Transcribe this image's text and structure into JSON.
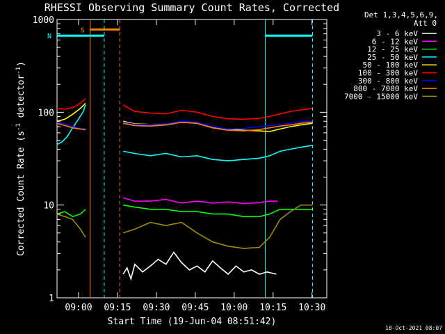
{
  "chart_data": {
    "type": "line",
    "title": "RHESSI Observing Summary Count Rates, Corrected",
    "xlabel": "Start Time (19-Jun-04 08:51:42)",
    "ylabel_main": "Corrected Count Rate (s",
    "ylabel_sup1": "-1",
    "ylabel_mid": " detector",
    "ylabel_sup2": "-1",
    "ylabel_end": ")",
    "x_unit": "minutes after 08:51:42",
    "xlim": [
      0,
      104
    ],
    "ylim": [
      1,
      1000
    ],
    "yscale": "log",
    "x_ticks": [
      {
        "value": 8.3,
        "label": "09:00"
      },
      {
        "value": 23.3,
        "label": "09:15"
      },
      {
        "value": 38.3,
        "label": "09:30"
      },
      {
        "value": 53.3,
        "label": "09:45"
      },
      {
        "value": 68.3,
        "label": "10:00"
      },
      {
        "value": 83.3,
        "label": "10:15"
      },
      {
        "value": 98.3,
        "label": "10:30"
      }
    ],
    "y_ticks": [
      {
        "value": 1,
        "label": "1"
      },
      {
        "value": 10,
        "label": "10"
      },
      {
        "value": 100,
        "label": "100"
      },
      {
        "value": 1000,
        "label": "1000"
      }
    ],
    "legend_header_1": "Det 1,3,4,5,6,9,",
    "legend_header_2": "Att 0",
    "legend_position": "right",
    "flags": [
      {
        "label": "S",
        "color": "#ff7f00",
        "x_start": 12.8,
        "x_end": 24.2,
        "level": 780
      },
      {
        "label": "N",
        "color": "#00ffff",
        "x_start": 0,
        "x_end": 18.2,
        "level": 670
      },
      {
        "label": "",
        "color": "#00ffff",
        "x_start": 80.3,
        "x_end": 98.5,
        "level": 670
      }
    ],
    "markers": [
      {
        "x": 12.8,
        "color": "#ff7f00",
        "style": "solid"
      },
      {
        "x": 24.2,
        "color": "#ff7f00",
        "style": "dashed"
      },
      {
        "x": 18.2,
        "color": "#00ffff",
        "style": "dashed"
      },
      {
        "x": 80.3,
        "color": "#00ffff",
        "style": "solid"
      },
      {
        "x": 98.5,
        "color": "#00ffff",
        "style": "dashed"
      }
    ],
    "series": [
      {
        "name": "3 - 6 keV",
        "color": "#ffffff",
        "points": [
          [
            25.5,
            1.8
          ],
          [
            27.0,
            2.1
          ],
          [
            28.5,
            1.6
          ],
          [
            30.0,
            2.3
          ],
          [
            33.0,
            1.9
          ],
          [
            36.0,
            2.2
          ],
          [
            39.0,
            2.6
          ],
          [
            42.0,
            2.3
          ],
          [
            45.0,
            3.1
          ],
          [
            48.0,
            2.4
          ],
          [
            51.0,
            2.0
          ],
          [
            54.0,
            2.2
          ],
          [
            57.0,
            1.9
          ],
          [
            60.0,
            2.5
          ],
          [
            63.0,
            2.1
          ],
          [
            66.0,
            1.8
          ],
          [
            69.0,
            2.2
          ],
          [
            72.0,
            1.9
          ],
          [
            75.0,
            2.0
          ],
          [
            78.0,
            1.8
          ],
          [
            81.0,
            1.9
          ],
          [
            84.5,
            1.8
          ]
        ]
      },
      {
        "name": "6 - 12 keV",
        "color": "#ff00ff",
        "points": [
          [
            25.5,
            12
          ],
          [
            30.0,
            11
          ],
          [
            36.0,
            11
          ],
          [
            42.0,
            11.5
          ],
          [
            48.0,
            10.5
          ],
          [
            54.0,
            11
          ],
          [
            60.0,
            10.5
          ],
          [
            66.0,
            10.8
          ],
          [
            72.0,
            10.4
          ],
          [
            78.0,
            10.6
          ],
          [
            82.0,
            11
          ],
          [
            85.0,
            11
          ]
        ]
      },
      {
        "name": "12 - 25 keV",
        "color": "#00ff00",
        "points": [
          [
            0,
            8
          ],
          [
            3.0,
            8.5
          ],
          [
            6.0,
            7.5
          ],
          [
            9.0,
            8
          ],
          [
            11.0,
            9
          ],
          [
            25.5,
            10
          ],
          [
            30.0,
            9.5
          ],
          [
            36.0,
            9
          ],
          [
            42.0,
            9
          ],
          [
            48.0,
            8.5
          ],
          [
            54.0,
            8.5
          ],
          [
            60.0,
            8
          ],
          [
            66.0,
            8
          ],
          [
            72.0,
            7.5
          ],
          [
            78.0,
            7.5
          ],
          [
            82.0,
            8
          ],
          [
            86.0,
            9
          ],
          [
            90.0,
            9
          ],
          [
            94.0,
            9
          ],
          [
            98.5,
            9
          ]
        ]
      },
      {
        "name": "25 - 50 keV",
        "color": "#00ffff",
        "points": [
          [
            0,
            45
          ],
          [
            2.0,
            48
          ],
          [
            4.0,
            55
          ],
          [
            6.0,
            68
          ],
          [
            8.0,
            82
          ],
          [
            10.0,
            100
          ],
          [
            11.0,
            120
          ],
          [
            25.5,
            38
          ],
          [
            30.0,
            36
          ],
          [
            36.0,
            34
          ],
          [
            42.0,
            36
          ],
          [
            48.0,
            33
          ],
          [
            54.0,
            34
          ],
          [
            60.0,
            31
          ],
          [
            66.0,
            30
          ],
          [
            72.0,
            31
          ],
          [
            78.0,
            32
          ],
          [
            82.0,
            34
          ],
          [
            86.0,
            38
          ],
          [
            90.0,
            40
          ],
          [
            94.0,
            42
          ],
          [
            98.5,
            44
          ]
        ]
      },
      {
        "name": "50 - 100 keV",
        "color": "#ffff00",
        "points": [
          [
            0,
            80
          ],
          [
            3.0,
            84
          ],
          [
            6.0,
            95
          ],
          [
            9.0,
            110
          ],
          [
            11.0,
            125
          ],
          [
            25.5,
            80
          ],
          [
            30.0,
            75
          ],
          [
            36.0,
            74
          ],
          [
            42.0,
            74
          ],
          [
            48.0,
            78
          ],
          [
            54.0,
            76
          ],
          [
            60.0,
            68
          ],
          [
            66.0,
            66
          ],
          [
            72.0,
            64
          ],
          [
            78.0,
            63
          ],
          [
            82.0,
            62
          ],
          [
            86.0,
            66
          ],
          [
            90.0,
            70
          ],
          [
            94.0,
            73
          ],
          [
            98.5,
            76
          ]
        ]
      },
      {
        "name": "100 - 300 keV",
        "color": "#ff0000",
        "points": [
          [
            0,
            110
          ],
          [
            3.0,
            108
          ],
          [
            6.0,
            112
          ],
          [
            9.0,
            125
          ],
          [
            11.0,
            140
          ],
          [
            25.5,
            120
          ],
          [
            30.0,
            102
          ],
          [
            36.0,
            98
          ],
          [
            42.0,
            96
          ],
          [
            48.0,
            105
          ],
          [
            54.0,
            100
          ],
          [
            60.0,
            90
          ],
          [
            66.0,
            85
          ],
          [
            72.0,
            84
          ],
          [
            78.0,
            86
          ],
          [
            82.0,
            90
          ],
          [
            86.0,
            96
          ],
          [
            90.0,
            102
          ],
          [
            94.0,
            106
          ],
          [
            98.5,
            110
          ]
        ]
      },
      {
        "name": "300 - 800 keV",
        "color": "#0000ff",
        "points": [
          [
            0,
            78
          ],
          [
            3.0,
            75
          ],
          [
            6.0,
            70
          ],
          [
            9.0,
            67
          ],
          [
            11.0,
            66
          ],
          [
            25.5,
            78
          ],
          [
            30.0,
            74
          ],
          [
            36.0,
            74
          ],
          [
            42.0,
            75
          ],
          [
            48.0,
            80
          ],
          [
            54.0,
            78
          ],
          [
            60.0,
            70
          ],
          [
            66.0,
            66
          ],
          [
            72.0,
            67
          ],
          [
            78.0,
            70
          ],
          [
            82.0,
            72
          ],
          [
            86.0,
            74
          ],
          [
            90.0,
            76
          ],
          [
            94.0,
            79
          ],
          [
            98.5,
            80
          ]
        ]
      },
      {
        "name": "800 - 7000 keV",
        "color": "#ff7f00",
        "points": [
          [
            0,
            76
          ],
          [
            3.0,
            72
          ],
          [
            6.0,
            68
          ],
          [
            9.0,
            66
          ],
          [
            11.0,
            65
          ],
          [
            25.5,
            76
          ],
          [
            30.0,
            72
          ],
          [
            36.0,
            71
          ],
          [
            42.0,
            73
          ],
          [
            48.0,
            78
          ],
          [
            54.0,
            76
          ],
          [
            60.0,
            68
          ],
          [
            66.0,
            64
          ],
          [
            72.0,
            63
          ],
          [
            78.0,
            65
          ],
          [
            82.0,
            68
          ],
          [
            86.0,
            71
          ],
          [
            90.0,
            73
          ],
          [
            94.0,
            76
          ],
          [
            98.5,
            78
          ]
        ]
      },
      {
        "name": "7000 - 15000 keV",
        "color": "#9f8f00",
        "points": [
          [
            0,
            8
          ],
          [
            3.0,
            7.5
          ],
          [
            6.0,
            7
          ],
          [
            9.0,
            5.5
          ],
          [
            11.0,
            4.5
          ],
          [
            25.5,
            5
          ],
          [
            30.0,
            5.5
          ],
          [
            36.0,
            6.5
          ],
          [
            42.0,
            6
          ],
          [
            48.0,
            6.5
          ],
          [
            54.0,
            5
          ],
          [
            60.0,
            4
          ],
          [
            66.0,
            3.6
          ],
          [
            72.0,
            3.4
          ],
          [
            78.0,
            3.5
          ],
          [
            82.0,
            4.5
          ],
          [
            86.0,
            7
          ],
          [
            90.0,
            8.5
          ],
          [
            94.0,
            10
          ],
          [
            98.5,
            10
          ]
        ]
      }
    ]
  },
  "footer": {
    "timestamp": "18-Oct-2021 08:07"
  }
}
